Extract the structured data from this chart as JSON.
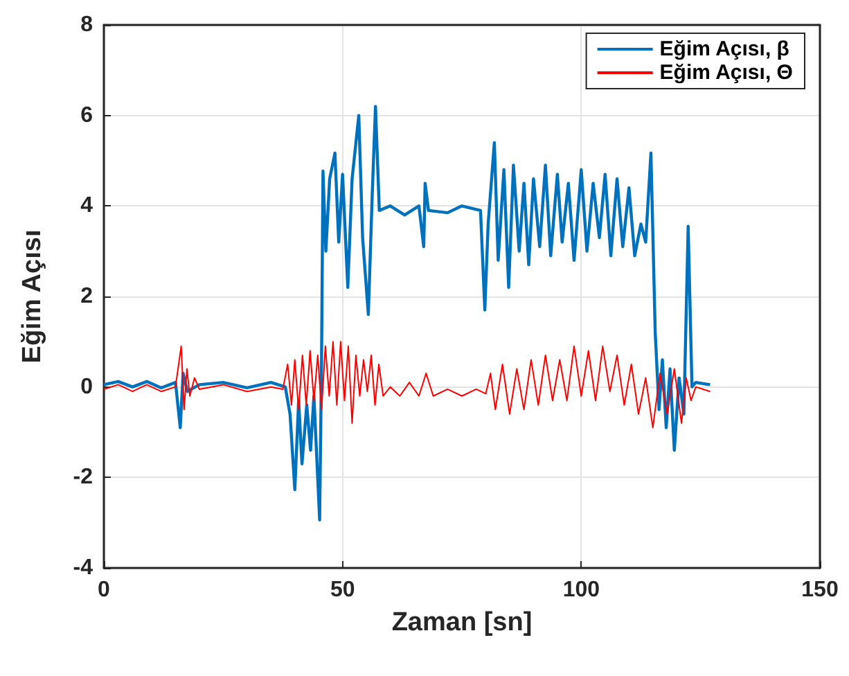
{
  "chart_data": {
    "type": "line",
    "xlabel": "Zaman [sn]",
    "ylabel": "Eğim Açısı",
    "xlim": [
      0,
      150
    ],
    "xticks": [
      0,
      50,
      100,
      150
    ],
    "ylim": [
      -4,
      8
    ],
    "yticks": [
      -4,
      -2,
      0,
      2,
      4,
      6,
      8
    ],
    "grid": true,
    "legend": "top right",
    "marker": "none",
    "line_style": "solid",
    "series": [
      {
        "name": "Eğim Açısı, β",
        "color": "#0072bd",
        "x": [
          0,
          3,
          6,
          9,
          12,
          15,
          16,
          16.6,
          17.5,
          20,
          25,
          30,
          35,
          38,
          39,
          40,
          40.8,
          41.5,
          42.5,
          43.3,
          44,
          45.2,
          45.6,
          45.9,
          46.5,
          47.3,
          48.4,
          49.2,
          50,
          51.1,
          52,
          53.4,
          54.2,
          55.4,
          56.2,
          56.9,
          57.7,
          60,
          63,
          66,
          67,
          67.3,
          68,
          72,
          75,
          78.9,
          79.8,
          80.5,
          81.8,
          82.6,
          83.8,
          84.8,
          85.8,
          87,
          88,
          89,
          90,
          91.3,
          92.5,
          93.6,
          95,
          96,
          97.3,
          98.5,
          100,
          101.2,
          102.5,
          103.8,
          105,
          106.2,
          107.5,
          108.7,
          110,
          111.2,
          112.5,
          113.5,
          114.6,
          115.5,
          116.3,
          117,
          117.8,
          118.6,
          119.5,
          120.5,
          121.5,
          122.4,
          123.2,
          124,
          127
        ],
        "values": [
          0.05,
          0.12,
          0.0,
          0.12,
          -0.02,
          0.1,
          -0.9,
          0.3,
          -0.1,
          0.05,
          0.1,
          -0.02,
          0.1,
          0.0,
          -0.6,
          -2.27,
          -0.3,
          -1.7,
          -0.4,
          -1.4,
          -0.2,
          -2.94,
          0.6,
          4.77,
          3.0,
          4.6,
          5.17,
          3.2,
          4.7,
          2.2,
          4.6,
          6.0,
          3.3,
          1.6,
          4.2,
          6.2,
          3.9,
          4.0,
          3.8,
          4.0,
          3.1,
          4.5,
          3.9,
          3.85,
          4.0,
          3.9,
          1.7,
          3.6,
          5.4,
          2.8,
          4.8,
          2.2,
          4.9,
          3.0,
          4.5,
          2.7,
          4.6,
          3.1,
          4.9,
          2.9,
          4.7,
          3.2,
          4.5,
          2.8,
          4.8,
          3.0,
          4.5,
          3.3,
          4.7,
          2.9,
          4.6,
          3.1,
          4.4,
          2.9,
          3.6,
          3.2,
          5.17,
          1.2,
          -0.5,
          0.6,
          -0.9,
          0.4,
          -1.4,
          0.2,
          -0.6,
          3.55,
          0.0,
          0.1,
          0.05
        ]
      },
      {
        "name": "Eğim Açısı, Θ",
        "color": "#ff0000",
        "x": [
          0,
          3,
          6,
          9,
          12,
          15,
          16.2,
          16.8,
          17.4,
          18,
          19,
          20,
          25,
          30,
          35,
          37.5,
          38.5,
          39.3,
          40,
          40.8,
          41.6,
          42.4,
          43.2,
          44,
          44.8,
          45.6,
          46.4,
          47.2,
          48,
          48.8,
          49.6,
          50.4,
          51.2,
          52,
          52.8,
          53.6,
          54.4,
          55.2,
          56,
          56.8,
          57.6,
          58.5,
          60,
          62,
          64,
          66,
          67.5,
          69,
          72,
          75,
          78,
          80,
          81,
          82,
          83.5,
          85,
          86.5,
          88,
          89.5,
          91,
          92.5,
          94,
          95.5,
          97,
          98.5,
          100,
          101.5,
          103,
          104.5,
          106,
          107.5,
          109,
          110.5,
          112,
          113.5,
          115,
          116.5,
          118,
          119.5,
          121,
          122,
          123,
          124,
          127
        ],
        "values": [
          -0.05,
          0.05,
          -0.1,
          0.05,
          -0.1,
          0.0,
          0.9,
          -0.5,
          0.4,
          -0.2,
          0.2,
          -0.05,
          0.05,
          -0.1,
          0.0,
          -0.05,
          0.5,
          -0.4,
          0.6,
          -0.5,
          0.7,
          -0.4,
          0.8,
          -0.3,
          0.7,
          -0.5,
          0.9,
          -0.2,
          1.0,
          -0.4,
          1.0,
          -0.3,
          0.9,
          -0.8,
          0.7,
          -0.2,
          0.6,
          -0.1,
          0.7,
          -0.4,
          0.5,
          -0.2,
          0.0,
          -0.2,
          0.1,
          -0.2,
          0.3,
          -0.2,
          -0.05,
          -0.2,
          -0.05,
          -0.15,
          0.3,
          -0.5,
          0.5,
          -0.6,
          0.4,
          -0.5,
          0.6,
          -0.4,
          0.7,
          -0.3,
          0.6,
          -0.3,
          0.9,
          -0.2,
          0.8,
          -0.3,
          0.9,
          -0.1,
          0.7,
          -0.4,
          0.5,
          -0.6,
          0.2,
          -0.9,
          0.3,
          -0.6,
          0.4,
          -0.8,
          0.2,
          -0.3,
          0,
          -0.1
        ]
      }
    ]
  }
}
